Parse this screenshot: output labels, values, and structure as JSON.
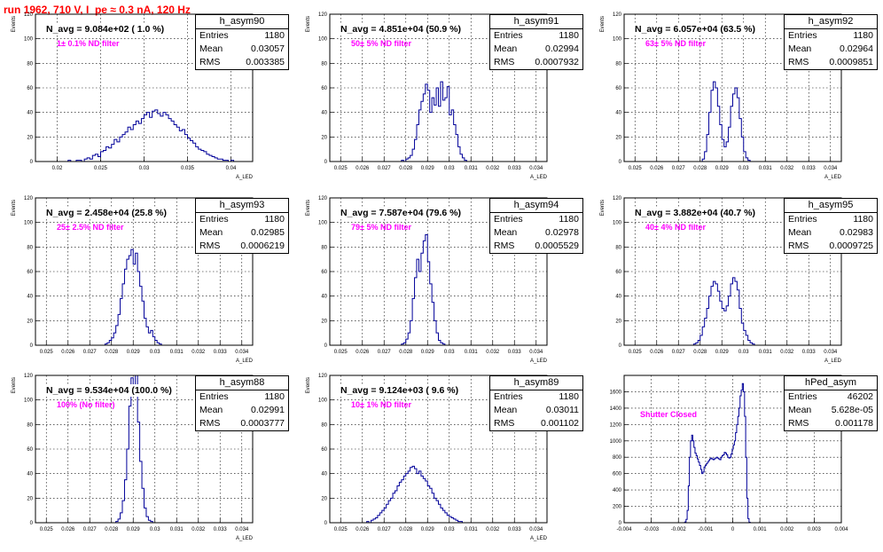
{
  "canvas_title": "run 1962,   710 V, I_pe ≈ 0.3 nA, 120 Hz",
  "colors": {
    "title": "#ff0000",
    "histogram": "#000099",
    "note": "#ff00ff"
  },
  "chart_data": [
    {
      "type": "bar",
      "name": "h_asym90",
      "stats": {
        "entries_label": "Entries",
        "entries": "1180",
        "mean_label": "Mean",
        "mean": "0.03057",
        "rms_label": "RMS",
        "rms": "0.003385"
      },
      "n_avg_text": "N_avg = 9.084e+02 ( 1.0 %)",
      "note": "1± 0.1% ND filter",
      "ylabel": "Events",
      "xlabel": "A_LED",
      "xlim": [
        0.0175,
        0.0425
      ],
      "ylim": [
        0,
        120
      ],
      "xticks": [
        "0.02",
        "0.025",
        "0.03",
        "0.035",
        "0.04"
      ],
      "yticks": [
        "0",
        "20",
        "40",
        "60",
        "80",
        "100",
        "120"
      ],
      "bin_edges": [
        0.0175,
        0.0425
      ],
      "values": [
        0,
        0,
        0,
        0,
        0,
        0,
        0,
        0,
        0,
        0,
        0,
        0,
        1,
        0,
        0,
        1,
        1,
        0,
        2,
        3,
        2,
        5,
        6,
        4,
        8,
        9,
        12,
        11,
        14,
        18,
        16,
        20,
        22,
        24,
        28,
        26,
        30,
        33,
        31,
        35,
        38,
        40,
        36,
        41,
        42,
        39,
        37,
        40,
        38,
        35,
        33,
        30,
        28,
        25,
        26,
        22,
        19,
        17,
        15,
        12,
        10,
        9,
        8,
        6,
        5,
        4,
        3,
        2,
        2,
        1,
        1,
        0,
        1,
        0,
        0,
        0,
        0,
        0,
        0,
        0
      ],
      "grid": true
    },
    {
      "type": "bar",
      "name": "h_asym91",
      "stats": {
        "entries_label": "Entries",
        "entries": "1180",
        "mean_label": "Mean",
        "mean": "0.02994",
        "rms_label": "RMS",
        "rms": "0.0007932"
      },
      "n_avg_text": "N_avg = 4.851e+04 (50.9 %)",
      "note": "50± 5% ND filter",
      "ylabel": "Events",
      "xlabel": "A_LED",
      "xlim": [
        0.0245,
        0.0345
      ],
      "ylim": [
        0,
        120
      ],
      "xticks": [
        "0.025",
        "0.026",
        "0.027",
        "0.028",
        "0.029",
        "0.03",
        "0.031",
        "0.032",
        "0.033",
        "0.034"
      ],
      "yticks": [
        "0",
        "20",
        "40",
        "60",
        "80",
        "100",
        "120"
      ],
      "bin_edges": [
        0.0245,
        0.0345
      ],
      "values": [
        0,
        0,
        0,
        0,
        0,
        0,
        0,
        0,
        0,
        0,
        0,
        0,
        0,
        0,
        0,
        0,
        0,
        0,
        0,
        0,
        0,
        0,
        0,
        0,
        0,
        0,
        0,
        0,
        0,
        0,
        0,
        0,
        0,
        1,
        0,
        2,
        3,
        5,
        10,
        18,
        30,
        42,
        49,
        55,
        63,
        58,
        40,
        52,
        46,
        60,
        45,
        65,
        50,
        52,
        61,
        38,
        42,
        30,
        22,
        12,
        6,
        3,
        1,
        0,
        0,
        0,
        0,
        0,
        0,
        0,
        0,
        0,
        0,
        0,
        0,
        0,
        0,
        0,
        0,
        0,
        0,
        0,
        0,
        0,
        0,
        0,
        0,
        0,
        0,
        0,
        0,
        0,
        0,
        0,
        0,
        0,
        0,
        0,
        0,
        0
      ],
      "grid": true
    },
    {
      "type": "bar",
      "name": "h_asym92",
      "stats": {
        "entries_label": "Entries",
        "entries": "1180",
        "mean_label": "Mean",
        "mean": "0.02964",
        "rms_label": "RMS",
        "rms": "0.0009851"
      },
      "n_avg_text": "N_avg = 6.057e+04 (63.5 %)",
      "note": "63± 5% ND filter",
      "ylabel": "Events",
      "xlabel": "A_LED",
      "xlim": [
        0.0245,
        0.0345
      ],
      "ylim": [
        0,
        120
      ],
      "xticks": [
        "0.025",
        "0.026",
        "0.027",
        "0.028",
        "0.029",
        "0.03",
        "0.031",
        "0.032",
        "0.033",
        "0.034"
      ],
      "yticks": [
        "0",
        "20",
        "40",
        "60",
        "80",
        "100",
        "120"
      ],
      "bin_edges": [
        0.0245,
        0.0345
      ],
      "values": [
        0,
        0,
        0,
        0,
        0,
        0,
        0,
        0,
        0,
        0,
        0,
        0,
        0,
        0,
        0,
        0,
        0,
        0,
        0,
        0,
        0,
        0,
        0,
        0,
        0,
        0,
        0,
        0,
        0,
        0,
        0,
        0,
        0,
        0,
        0,
        0,
        2,
        8,
        22,
        40,
        58,
        65,
        60,
        45,
        30,
        18,
        12,
        16,
        28,
        45,
        55,
        60,
        52,
        35,
        20,
        8,
        3,
        1,
        0,
        0,
        0,
        0,
        0,
        0,
        0,
        0,
        0,
        0,
        0,
        0,
        0,
        0,
        0,
        0,
        0,
        0,
        0,
        0,
        0,
        0,
        0,
        0,
        0,
        0,
        0,
        0,
        0,
        0,
        0,
        0,
        0,
        0,
        0,
        0,
        0,
        0,
        0,
        0,
        0,
        0
      ],
      "grid": true
    },
    {
      "type": "bar",
      "name": "h_asym93",
      "stats": {
        "entries_label": "Entries",
        "entries": "1180",
        "mean_label": "Mean",
        "mean": "0.02985",
        "rms_label": "RMS",
        "rms": "0.0006219"
      },
      "n_avg_text": "N_avg = 2.458e+04 (25.8 %)",
      "note": "25± 2.5% ND filter",
      "ylabel": "Events",
      "xlabel": "A_LED",
      "xlim": [
        0.0245,
        0.0345
      ],
      "ylim": [
        0,
        120
      ],
      "xticks": [
        "0.025",
        "0.026",
        "0.027",
        "0.028",
        "0.029",
        "0.03",
        "0.031",
        "0.032",
        "0.033",
        "0.034"
      ],
      "yticks": [
        "0",
        "20",
        "40",
        "60",
        "80",
        "100",
        "120"
      ],
      "bin_edges": [
        0.0245,
        0.0345
      ],
      "values": [
        0,
        0,
        0,
        0,
        0,
        0,
        0,
        0,
        0,
        0,
        0,
        0,
        0,
        0,
        0,
        0,
        0,
        0,
        0,
        0,
        0,
        0,
        0,
        0,
        0,
        0,
        0,
        0,
        0,
        0,
        0,
        0,
        1,
        2,
        4,
        6,
        10,
        16,
        25,
        38,
        50,
        62,
        70,
        73,
        78,
        66,
        75,
        60,
        48,
        36,
        22,
        15,
        10,
        12,
        7,
        4,
        2,
        1,
        0,
        0,
        0,
        0,
        0,
        0,
        0,
        0,
        0,
        0,
        0,
        0,
        0,
        0,
        0,
        0,
        0,
        0,
        0,
        0,
        0,
        0,
        0,
        0,
        0,
        0,
        0,
        0,
        0,
        0,
        0,
        0,
        0,
        0,
        0,
        0,
        0,
        0,
        0,
        0,
        0,
        0
      ],
      "grid": true
    },
    {
      "type": "bar",
      "name": "h_asym94",
      "stats": {
        "entries_label": "Entries",
        "entries": "1180",
        "mean_label": "Mean",
        "mean": "0.02978",
        "rms_label": "RMS",
        "rms": "0.0005529"
      },
      "n_avg_text": "N_avg = 7.587e+04 (79.6 %)",
      "note": "79± 5% ND filter",
      "ylabel": "Events",
      "xlabel": "A_LED",
      "xlim": [
        0.0245,
        0.0345
      ],
      "ylim": [
        0,
        120
      ],
      "xticks": [
        "0.025",
        "0.026",
        "0.027",
        "0.028",
        "0.029",
        "0.03",
        "0.031",
        "0.032",
        "0.033",
        "0.034"
      ],
      "yticks": [
        "0",
        "20",
        "40",
        "60",
        "80",
        "100",
        "120"
      ],
      "bin_edges": [
        0.0245,
        0.0345
      ],
      "values": [
        0,
        0,
        0,
        0,
        0,
        0,
        0,
        0,
        0,
        0,
        0,
        0,
        0,
        0,
        0,
        0,
        0,
        0,
        0,
        0,
        0,
        0,
        0,
        0,
        0,
        0,
        0,
        0,
        0,
        0,
        0,
        0,
        0,
        1,
        2,
        5,
        10,
        20,
        38,
        55,
        70,
        60,
        75,
        85,
        90,
        68,
        50,
        35,
        20,
        10,
        4,
        2,
        1,
        0,
        0,
        0,
        0,
        0,
        0,
        0,
        0,
        0,
        0,
        0,
        0,
        0,
        0,
        0,
        0,
        0,
        0,
        0,
        0,
        0,
        0,
        0,
        0,
        0,
        0,
        0,
        0,
        0,
        0,
        0,
        0,
        0,
        0,
        0,
        0,
        0,
        0,
        0,
        0,
        0,
        0,
        0,
        0,
        0,
        0,
        0
      ],
      "grid": true
    },
    {
      "type": "bar",
      "name": "h_asym95",
      "stats": {
        "entries_label": "Entries",
        "entries": "1180",
        "mean_label": "Mean",
        "mean": "0.02983",
        "rms_label": "RMS",
        "rms": "0.0009725"
      },
      "n_avg_text": "N_avg = 3.882e+04 (40.7 %)",
      "note": "40± 4% ND filter",
      "ylabel": "Events",
      "xlabel": "A_LED",
      "xlim": [
        0.0245,
        0.0345
      ],
      "ylim": [
        0,
        120
      ],
      "xticks": [
        "0.025",
        "0.026",
        "0.027",
        "0.028",
        "0.029",
        "0.03",
        "0.031",
        "0.032",
        "0.033",
        "0.034"
      ],
      "yticks": [
        "0",
        "20",
        "40",
        "60",
        "80",
        "100",
        "120"
      ],
      "bin_edges": [
        0.0245,
        0.0345
      ],
      "values": [
        0,
        0,
        0,
        0,
        0,
        0,
        0,
        0,
        0,
        0,
        0,
        0,
        0,
        0,
        0,
        0,
        0,
        0,
        0,
        0,
        0,
        0,
        0,
        0,
        0,
        0,
        0,
        0,
        0,
        0,
        0,
        0,
        1,
        2,
        4,
        8,
        15,
        22,
        30,
        40,
        48,
        52,
        50,
        44,
        36,
        30,
        28,
        32,
        40,
        50,
        55,
        52,
        45,
        30,
        18,
        12,
        8,
        4,
        2,
        1,
        0,
        0,
        0,
        0,
        0,
        0,
        0,
        0,
        0,
        0,
        0,
        0,
        0,
        0,
        0,
        0,
        0,
        0,
        0,
        0,
        0,
        0,
        0,
        0,
        0,
        0,
        0,
        0,
        0,
        0,
        0,
        0,
        0,
        0,
        0,
        0,
        0,
        0,
        0,
        0
      ],
      "grid": true
    },
    {
      "type": "bar",
      "name": "h_asym88",
      "stats": {
        "entries_label": "Entries",
        "entries": "1180",
        "mean_label": "Mean",
        "mean": "0.02991",
        "rms_label": "RMS",
        "rms": "0.0003777"
      },
      "n_avg_text": "N_avg = 9.534e+04 (100.0 %)",
      "note": "100% (No filter)",
      "ylabel": "Events",
      "xlabel": "A_LED",
      "xlim": [
        0.0245,
        0.0345
      ],
      "ylim": [
        0,
        120
      ],
      "xticks": [
        "0.025",
        "0.026",
        "0.027",
        "0.028",
        "0.029",
        "0.03",
        "0.031",
        "0.032",
        "0.033",
        "0.034"
      ],
      "yticks": [
        "0",
        "20",
        "40",
        "60",
        "80",
        "100",
        "120"
      ],
      "bin_edges": [
        0.0245,
        0.0345
      ],
      "values": [
        0,
        0,
        0,
        0,
        0,
        0,
        0,
        0,
        0,
        0,
        0,
        0,
        0,
        0,
        0,
        0,
        0,
        0,
        0,
        0,
        0,
        0,
        0,
        0,
        0,
        0,
        0,
        0,
        0,
        0,
        0,
        0,
        0,
        0,
        0,
        0,
        0,
        1,
        3,
        8,
        18,
        35,
        60,
        95,
        118,
        105,
        120,
        82,
        50,
        28,
        12,
        5,
        2,
        1,
        0,
        0,
        0,
        0,
        0,
        0,
        0,
        0,
        0,
        0,
        0,
        0,
        0,
        0,
        0,
        0,
        0,
        0,
        0,
        0,
        0,
        0,
        0,
        0,
        0,
        0,
        0,
        0,
        0,
        0,
        0,
        0,
        0,
        0,
        0,
        0,
        0,
        0,
        0,
        0,
        0,
        0,
        0,
        0,
        0,
        0
      ],
      "grid": true
    },
    {
      "type": "bar",
      "name": "h_asym89",
      "stats": {
        "entries_label": "Entries",
        "entries": "1180",
        "mean_label": "Mean",
        "mean": "0.03011",
        "rms_label": "RMS",
        "rms": "0.001102"
      },
      "n_avg_text": "N_avg = 9.124e+03 ( 9.6 %)",
      "note": "10± 1% ND filter",
      "ylabel": "Events",
      "xlabel": "A_LED",
      "xlim": [
        0.0245,
        0.0345
      ],
      "ylim": [
        0,
        120
      ],
      "xticks": [
        "0.025",
        "0.026",
        "0.027",
        "0.028",
        "0.029",
        "0.03",
        "0.031",
        "0.032",
        "0.033",
        "0.034"
      ],
      "yticks": [
        "0",
        "20",
        "40",
        "60",
        "80",
        "100",
        "120"
      ],
      "bin_edges": [
        0.0245,
        0.0345
      ],
      "values": [
        0,
        0,
        0,
        0,
        0,
        0,
        0,
        0,
        0,
        0,
        0,
        0,
        0,
        0,
        0,
        0,
        0,
        1,
        0,
        2,
        3,
        4,
        6,
        8,
        10,
        12,
        15,
        18,
        20,
        24,
        26,
        30,
        33,
        35,
        38,
        40,
        42,
        45,
        46,
        44,
        40,
        42,
        38,
        36,
        34,
        30,
        28,
        24,
        20,
        18,
        15,
        12,
        10,
        8,
        6,
        5,
        4,
        3,
        2,
        1,
        1,
        0,
        0,
        0,
        0,
        0,
        0,
        0,
        0,
        0,
        0,
        0,
        0,
        0,
        0,
        0,
        0,
        0,
        0,
        0,
        0,
        0,
        0,
        0,
        0,
        0,
        0,
        0,
        0,
        0,
        0,
        0,
        0,
        0,
        0,
        0,
        0,
        0,
        0,
        0
      ],
      "grid": true
    },
    {
      "type": "bar",
      "name": "hPed_asym",
      "stats": {
        "entries_label": "Entries",
        "entries": "46202",
        "mean_label": "Mean",
        "mean": "5.628e-05",
        "rms_label": "RMS",
        "rms": "0.001178"
      },
      "n_avg_text": "",
      "note": "Shutter Closed",
      "ylabel": "",
      "xlabel": "",
      "xlim": [
        -0.004,
        0.004
      ],
      "ylim": [
        0,
        1800
      ],
      "xticks": [
        "-0.004",
        "-0.003",
        "-0.002",
        "-0.001",
        "0",
        "0.001",
        "0.002",
        "0.003",
        "0.004"
      ],
      "yticks": [
        "0",
        "200",
        "400",
        "600",
        "800",
        "1000",
        "1200",
        "1400",
        "1600"
      ],
      "bin_edges": [
        -0.004,
        0.004
      ],
      "values": [
        0,
        0,
        0,
        0,
        0,
        0,
        0,
        0,
        0,
        0,
        0,
        0,
        0,
        0,
        0,
        0,
        0,
        0,
        0,
        0,
        0,
        0,
        0,
        0,
        0,
        0,
        0,
        0,
        0,
        0,
        0,
        0,
        0,
        0,
        0,
        0,
        0,
        0,
        0,
        0,
        0,
        0,
        0,
        0,
        0,
        0,
        0,
        0,
        0,
        0,
        0,
        0,
        0,
        2,
        10,
        40,
        150,
        450,
        800,
        1000,
        1070,
        1000,
        920,
        850,
        820,
        780,
        740,
        700,
        650,
        600,
        620,
        680,
        700,
        720,
        740,
        760,
        780,
        790,
        780,
        770,
        780,
        790,
        800,
        790,
        780,
        770,
        800,
        820,
        830,
        860,
        850,
        830,
        800,
        790,
        800,
        840,
        900,
        950,
        1000,
        1100,
        1200,
        1300,
        1400,
        1550,
        1620,
        1700,
        1600,
        1300,
        800,
        300,
        50,
        5,
        0,
        0,
        0,
        0,
        0,
        0,
        0,
        0,
        0,
        0,
        0,
        0,
        0,
        0,
        0,
        0,
        0,
        0,
        0,
        0,
        0,
        0,
        0,
        0,
        0,
        0,
        0,
        0,
        0,
        0,
        0,
        0,
        0,
        0,
        0,
        0,
        0,
        0,
        0,
        0,
        0,
        0,
        0,
        0,
        0,
        0,
        0,
        0,
        0,
        0,
        0,
        0,
        0,
        0,
        0,
        0,
        0,
        0,
        0,
        0,
        0,
        0,
        0,
        0,
        0,
        0,
        0,
        0,
        0,
        0,
        0,
        0,
        0,
        0,
        0,
        0,
        0,
        0,
        0,
        0,
        0
      ],
      "grid": true
    }
  ]
}
